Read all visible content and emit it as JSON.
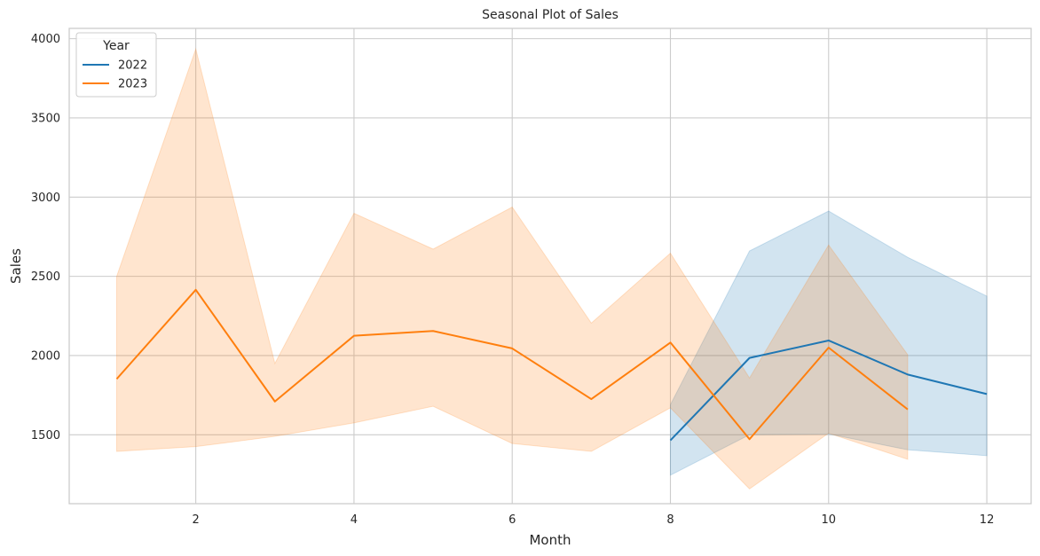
{
  "chart_data": {
    "type": "line",
    "title": "Seasonal Plot of Sales",
    "xlabel": "Month",
    "ylabel": "Sales",
    "xlim": [
      0.4,
      12.56
    ],
    "ylim": [
      1065,
      4065
    ],
    "xticks": [
      2,
      4,
      6,
      8,
      10,
      12
    ],
    "yticks": [
      1500,
      2000,
      2500,
      3000,
      3500,
      4000
    ],
    "grid": true,
    "legend": {
      "title": "Year",
      "position": "top-left"
    },
    "series": [
      {
        "name": "2022",
        "color": "#1f77b4",
        "x": [
          8,
          9,
          10,
          11,
          12
        ],
        "values": [
          1465,
          1985,
          2095,
          1880,
          1757
        ],
        "ci_lower": [
          1245,
          1500,
          1505,
          1405,
          1368
        ],
        "ci_upper": [
          1690,
          2660,
          2912,
          2620,
          2375
        ]
      },
      {
        "name": "2023",
        "color": "#ff7f0e",
        "x": [
          1,
          2,
          3,
          4,
          5,
          6,
          7,
          8,
          9,
          10,
          11
        ],
        "values": [
          1852,
          2415,
          1710,
          2125,
          2155,
          2045,
          1725,
          2082,
          1472,
          2050,
          1660
        ],
        "ci_lower": [
          1395,
          1425,
          1490,
          1575,
          1680,
          1445,
          1395,
          1670,
          1158,
          1510,
          1345
        ],
        "ci_upper": [
          2500,
          3935,
          1950,
          2898,
          2672,
          2937,
          2205,
          2646,
          1858,
          2698,
          2005
        ]
      }
    ]
  }
}
